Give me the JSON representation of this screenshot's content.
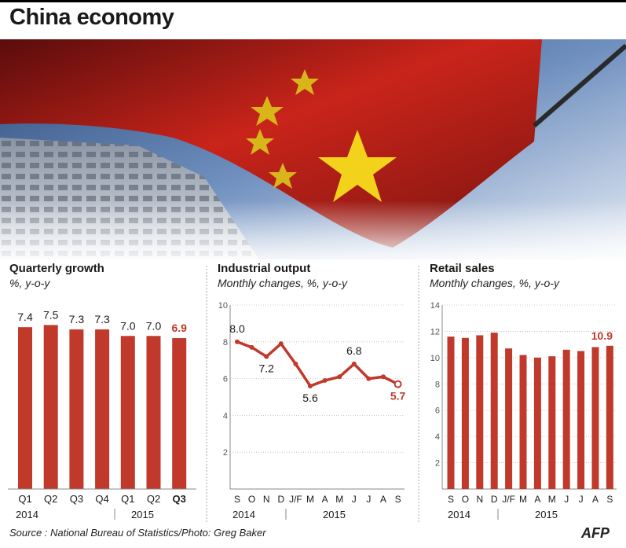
{
  "title": "China economy",
  "source": "Source : National Bureau of Statistics/Photo: Greg Baker",
  "logo": "AFP",
  "colors": {
    "bar": "#c0392b",
    "highlight": "#c0392b",
    "text": "#1a1a1a",
    "axis": "#888888"
  },
  "chart_data": [
    {
      "type": "bar",
      "title": "Quarterly growth",
      "subtitle": "%, y-o-y",
      "categories": [
        "Q1",
        "Q2",
        "Q3",
        "Q4",
        "Q1",
        "Q2",
        "Q3"
      ],
      "values": [
        7.4,
        7.5,
        7.3,
        7.3,
        7.0,
        7.0,
        6.9
      ],
      "value_labels": [
        "7.4",
        "7.5",
        "7.3",
        "7.3",
        "7.0",
        "7.0",
        "6.9"
      ],
      "year_labels": [
        "2014",
        "2015"
      ],
      "ylim": [
        0,
        8.7
      ],
      "highlight_last": true
    },
    {
      "type": "line",
      "title": "Industrial output",
      "subtitle": "Monthly changes, %, y-o-y",
      "categories": [
        "S",
        "O",
        "N",
        "D",
        "J/F",
        "M",
        "A",
        "M",
        "J",
        "J",
        "A",
        "S"
      ],
      "values": [
        8.0,
        7.7,
        7.2,
        7.9,
        6.8,
        5.6,
        5.9,
        6.1,
        6.8,
        6.0,
        6.1,
        5.7
      ],
      "annotations": [
        {
          "index": 0,
          "label": "8.0"
        },
        {
          "index": 2,
          "label": "7.2"
        },
        {
          "index": 5,
          "label": "5.6"
        },
        {
          "index": 8,
          "label": "6.8"
        },
        {
          "index": 11,
          "label": "5.7"
        }
      ],
      "year_labels": [
        "2014",
        "2015"
      ],
      "ylim": [
        0,
        10
      ],
      "yticks": [
        2,
        4,
        6,
        8,
        10
      ],
      "grid": true
    },
    {
      "type": "bar",
      "title": "Retail sales",
      "subtitle": "Monthly changes, %, y-o-y",
      "categories": [
        "S",
        "O",
        "N",
        "D",
        "J/F",
        "M",
        "A",
        "M",
        "J",
        "J",
        "A",
        "S"
      ],
      "values": [
        11.6,
        11.5,
        11.7,
        11.9,
        10.7,
        10.2,
        10.0,
        10.1,
        10.6,
        10.5,
        10.8,
        10.9
      ],
      "annotations": [
        {
          "index": 11,
          "label": "10.9"
        }
      ],
      "year_labels": [
        "2014",
        "2015"
      ],
      "ylim": [
        0,
        14
      ],
      "yticks": [
        2,
        4,
        6,
        8,
        10,
        12,
        14
      ],
      "grid": true
    }
  ]
}
